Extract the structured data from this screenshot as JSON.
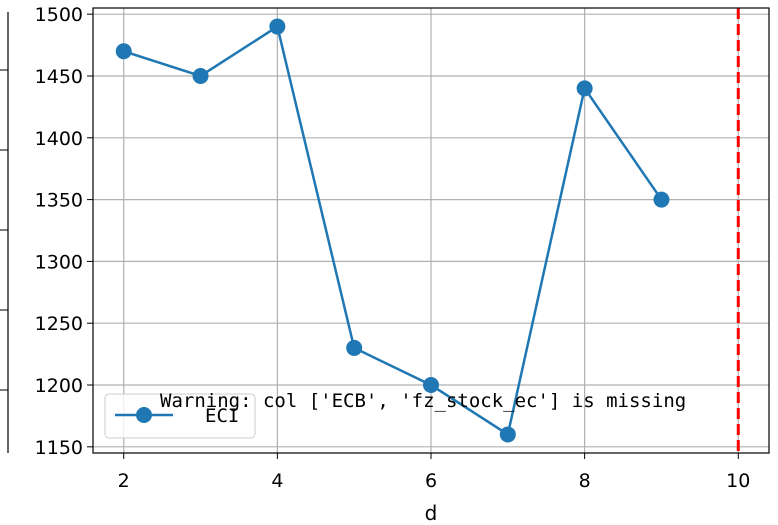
{
  "chart_data": {
    "type": "line",
    "xlabel": "d",
    "ylabel": "",
    "xlim": [
      1.6,
      10.4
    ],
    "ylim": [
      1145,
      1505
    ],
    "x_ticks": [
      2,
      4,
      6,
      8,
      10
    ],
    "y_ticks": [
      1150,
      1200,
      1250,
      1300,
      1350,
      1400,
      1450,
      1500
    ],
    "grid": true,
    "legend_placement": "lower-left",
    "series": [
      {
        "name": "ECI",
        "color": "#1f77b4",
        "marker": "circle",
        "x": [
          2,
          3,
          4,
          5,
          6,
          7,
          8,
          9
        ],
        "y": [
          1470,
          1450,
          1490,
          1230,
          1200,
          1160,
          1440,
          1350
        ]
      }
    ],
    "vline": {
      "x": 10,
      "color": "#ff0000",
      "style": "dashed"
    },
    "annotation": "Warning: col ['ECB', 'fz_stock_ec'] is missing"
  }
}
